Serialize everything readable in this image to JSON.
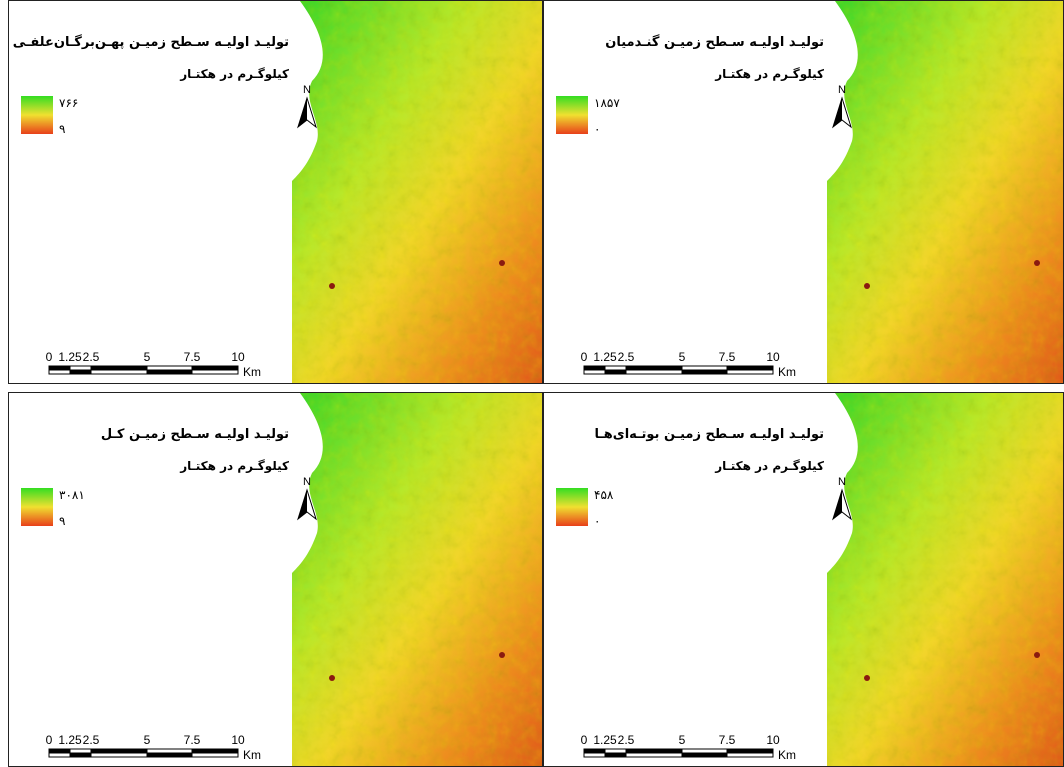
{
  "panels": [
    {
      "title": "تولیـد اولیـه سـطح زمیـن پهـن‌برگـان‌علفـی",
      "unit": "کیلوگـرم در هکتـار",
      "legend_max": "۷۶۶",
      "legend_min": "۹"
    },
    {
      "title": "تولیـد اولیـه سـطح زمیـن گنـدمیان",
      "unit": "کیلوگـرم در هکتـار",
      "legend_max": "۱۸۵۷",
      "legend_min": "۰"
    },
    {
      "title": "تولیـد اولیـه سـطح زمیـن کـل",
      "unit": "کیلوگـرم در هکتـار",
      "legend_max": "۳۰۸۱",
      "legend_min": "۹"
    },
    {
      "title": "تولیـد اولیـه سـطح زمیـن بوتـه‌ای‌هـا",
      "unit": "کیلوگـرم در هکتـار",
      "legend_max": "۴۵۸",
      "legend_min": "۰"
    }
  ],
  "scale_bar": {
    "labels": [
      "0",
      "1.25",
      "2.5",
      "5",
      "7.5",
      "10"
    ],
    "unit": "Km"
  },
  "north_label": "N"
}
